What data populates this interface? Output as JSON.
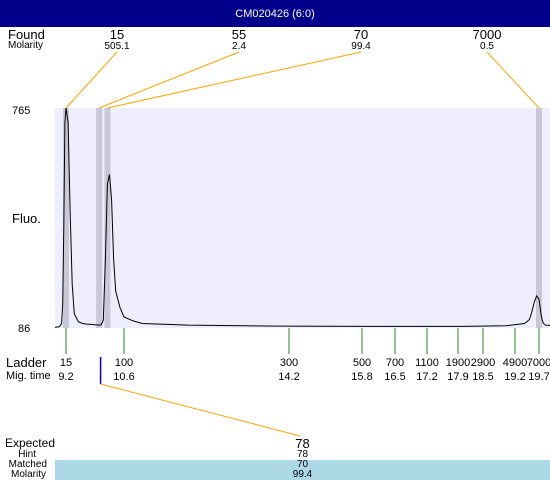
{
  "window_title": "CM020426 (6:0)",
  "found_label": "Found",
  "molarity_label": "Molarity",
  "fluo_label": "Fluo.",
  "ladder_label": "Ladder",
  "migtime_label": "Mig. time",
  "expected_section": {
    "expected_label": "Expected",
    "hint_label": "Hint",
    "matched_label": "Matched",
    "molarity_label": "Molarity",
    "expected_value": "78",
    "hint_value": "78",
    "matched_value": "70",
    "molarity_value": "99.4"
  },
  "colors": {
    "title_bar": "#00008b",
    "plot_bg": "#eeeefc",
    "peak_band": "#c8c8d8",
    "callout_line": "#ffa500",
    "ladder_tick": "#228b22",
    "expected_tick": "#0000cd",
    "hint_band": "#add8e6"
  },
  "chart_data": {
    "type": "line",
    "title": "",
    "xlabel": "",
    "ylabel": "Fluo.",
    "y_axis_ticks": [
      "765",
      "86"
    ],
    "ylim": [
      86,
      765
    ],
    "xlim_mig_time": [
      8.7,
      20.2
    ],
    "grid": false,
    "found_peaks": [
      {
        "size": "15",
        "molarity": "505.1",
        "mig_time": 9.2
      },
      {
        "size": "55",
        "molarity": "2.4",
        "mig_time": 10.0
      },
      {
        "size": "70",
        "molarity": "99.4",
        "mig_time": 10.2
      },
      {
        "size": "7000",
        "molarity": "0.5",
        "mig_time": 19.7
      }
    ],
    "ladder": [
      {
        "size": "15",
        "time": "9.2"
      },
      {
        "size": "100",
        "time": "10.6"
      },
      {
        "size": "300",
        "time": "14.2"
      },
      {
        "size": "500",
        "time": "15.8"
      },
      {
        "size": "700",
        "time": "16.5"
      },
      {
        "size": "1100",
        "time": "17.2"
      },
      {
        "size": "1900",
        "time": "17.9"
      },
      {
        "size": "2900",
        "time": "18.5"
      },
      {
        "size": "4900",
        "time": "19.2"
      },
      {
        "size": "7000",
        "time": "19.7"
      }
    ],
    "expected_marker": {
      "size": "78",
      "mig_time": 10.3
    },
    "trace": {
      "x": [
        8.7,
        8.9,
        9.0,
        9.05,
        9.1,
        9.15,
        9.2,
        9.25,
        9.3,
        9.35,
        9.4,
        9.5,
        9.6,
        9.7,
        9.8,
        9.9,
        10.0,
        10.05,
        10.1,
        10.15,
        10.2,
        10.25,
        10.3,
        10.35,
        10.4,
        10.5,
        10.6,
        10.8,
        11.0,
        12.0,
        14.0,
        16.0,
        18.0,
        19.0,
        19.4,
        19.5,
        19.55,
        19.6,
        19.65,
        19.7,
        19.75,
        19.8,
        19.85,
        19.9,
        20.0,
        20.2
      ],
      "y": [
        88,
        90,
        100,
        160,
        400,
        720,
        765,
        720,
        450,
        220,
        130,
        105,
        100,
        98,
        97,
        96,
        95,
        96,
        110,
        300,
        530,
        560,
        480,
        300,
        200,
        150,
        120,
        108,
        100,
        95,
        92,
        91,
        91,
        93,
        100,
        112,
        135,
        165,
        185,
        175,
        150,
        125,
        110,
        100,
        95,
        94
      ]
    }
  }
}
